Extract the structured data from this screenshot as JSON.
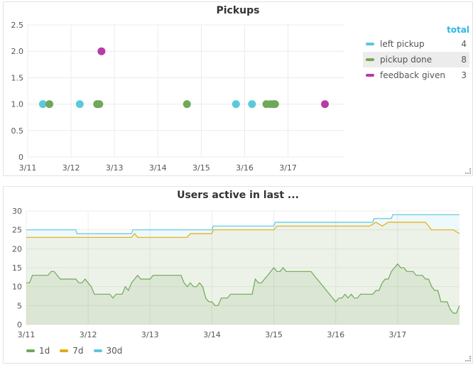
{
  "panels": {
    "pickups": {
      "title": "Pickups",
      "legend": {
        "header": "total",
        "items": [
          {
            "label": "left pickup",
            "total": "4",
            "color": "#5bc8dc"
          },
          {
            "label": "pickup done",
            "total": "8",
            "color": "#6fa85a"
          },
          {
            "label": "feedback given",
            "total": "3",
            "color": "#b83aa8"
          }
        ]
      }
    },
    "users": {
      "title": "Users active in last ...",
      "legend": [
        {
          "label": "1d",
          "color": "#6fa85a"
        },
        {
          "label": "7d",
          "color": "#e5ac0e"
        },
        {
          "label": "30d",
          "color": "#5bc8dc"
        }
      ]
    }
  },
  "chart_data": [
    {
      "type": "scatter",
      "title": "Pickups",
      "x_ticks": [
        "3/11",
        "3/12",
        "3/13",
        "3/14",
        "3/15",
        "3/16",
        "3/17"
      ],
      "y_ticks": [
        "0",
        "0.5",
        "1.0",
        "1.5",
        "2.0",
        "2.5"
      ],
      "xlim": [
        0,
        7.3
      ],
      "ylim": [
        0,
        2.5
      ],
      "grid": true,
      "series": [
        {
          "name": "left pickup",
          "color": "#5bc8dc",
          "x": [
            0.35,
            1.2,
            4.8,
            5.17
          ],
          "y": [
            1,
            1,
            1,
            1
          ]
        },
        {
          "name": "pickup done",
          "color": "#6fa85a",
          "x": [
            0.5,
            1.6,
            1.65,
            3.67,
            5.5,
            5.6,
            5.67,
            5.7
          ],
          "y": [
            1,
            1,
            1,
            1,
            1,
            1,
            1,
            1
          ]
        },
        {
          "name": "feedback given",
          "color": "#b83aa8",
          "x": [
            1.7,
            6.85
          ],
          "y": [
            2,
            1
          ]
        }
      ]
    },
    {
      "type": "area",
      "title": "Users active in last ...",
      "x_ticks": [
        "3/11",
        "3/12",
        "3/13",
        "3/14",
        "3/15",
        "3/16",
        "3/17"
      ],
      "y_ticks": [
        "0",
        "5",
        "10",
        "15",
        "20",
        "25",
        "30"
      ],
      "xlim": [
        0,
        7
      ],
      "ylim": [
        0,
        30
      ],
      "grid": true,
      "series": [
        {
          "name": "30d",
          "color": "#5bc8dc",
          "points": [
            [
              0,
              25
            ],
            [
              0.8,
              25
            ],
            [
              0.82,
              24
            ],
            [
              1.7,
              24
            ],
            [
              1.72,
              25
            ],
            [
              3.0,
              25
            ],
            [
              3.02,
              26
            ],
            [
              4.0,
              26
            ],
            [
              4.02,
              27
            ],
            [
              5.6,
              27
            ],
            [
              5.62,
              28
            ],
            [
              5.9,
              28
            ],
            [
              5.92,
              29
            ],
            [
              7,
              29
            ]
          ]
        },
        {
          "name": "7d",
          "color": "#e5ac0e",
          "points": [
            [
              0,
              23
            ],
            [
              1.7,
              23
            ],
            [
              1.75,
              24
            ],
            [
              1.8,
              23
            ],
            [
              2.6,
              23
            ],
            [
              2.65,
              24
            ],
            [
              3.0,
              24
            ],
            [
              3.02,
              25
            ],
            [
              4.0,
              25
            ],
            [
              4.05,
              26
            ],
            [
              5.55,
              26
            ],
            [
              5.65,
              27
            ],
            [
              5.75,
              26
            ],
            [
              5.85,
              27
            ],
            [
              6.45,
              27
            ],
            [
              6.55,
              25
            ],
            [
              6.9,
              25
            ],
            [
              7,
              24
            ]
          ]
        },
        {
          "name": "1d",
          "color": "#6fa85a",
          "points": [
            [
              0,
              11
            ],
            [
              0.05,
              11
            ],
            [
              0.1,
              13
            ],
            [
              0.35,
              13
            ],
            [
              0.4,
              14
            ],
            [
              0.45,
              14
            ],
            [
              0.5,
              13
            ],
            [
              0.55,
              12
            ],
            [
              0.8,
              12
            ],
            [
              0.85,
              11
            ],
            [
              0.9,
              11
            ],
            [
              0.95,
              12
            ],
            [
              1.0,
              11
            ],
            [
              1.05,
              10
            ],
            [
              1.1,
              8
            ],
            [
              1.35,
              8
            ],
            [
              1.4,
              7
            ],
            [
              1.45,
              8
            ],
            [
              1.55,
              8
            ],
            [
              1.6,
              10
            ],
            [
              1.65,
              9
            ],
            [
              1.7,
              11
            ],
            [
              1.8,
              13
            ],
            [
              1.85,
              12
            ],
            [
              2.0,
              12
            ],
            [
              2.05,
              13
            ],
            [
              2.5,
              13
            ],
            [
              2.55,
              11
            ],
            [
              2.6,
              10
            ],
            [
              2.65,
              11
            ],
            [
              2.7,
              10
            ],
            [
              2.75,
              10
            ],
            [
              2.8,
              11
            ],
            [
              2.85,
              10
            ],
            [
              2.9,
              7
            ],
            [
              2.95,
              6
            ],
            [
              3.0,
              6
            ],
            [
              3.05,
              5
            ],
            [
              3.1,
              5
            ],
            [
              3.15,
              7
            ],
            [
              3.2,
              7
            ],
            [
              3.25,
              7
            ],
            [
              3.3,
              8
            ],
            [
              3.65,
              8
            ],
            [
              3.7,
              12
            ],
            [
              3.75,
              11
            ],
            [
              3.8,
              11
            ],
            [
              3.9,
              13
            ],
            [
              3.95,
              14
            ],
            [
              4.0,
              15
            ],
            [
              4.05,
              14
            ],
            [
              4.1,
              14
            ],
            [
              4.15,
              15
            ],
            [
              4.2,
              14
            ],
            [
              4.6,
              14
            ],
            [
              4.65,
              13
            ],
            [
              4.75,
              11
            ],
            [
              4.85,
              9
            ],
            [
              4.95,
              7
            ],
            [
              5.0,
              6
            ],
            [
              5.05,
              7
            ],
            [
              5.1,
              7
            ],
            [
              5.15,
              8
            ],
            [
              5.2,
              7
            ],
            [
              5.25,
              8
            ],
            [
              5.3,
              7
            ],
            [
              5.35,
              7
            ],
            [
              5.4,
              8
            ],
            [
              5.6,
              8
            ],
            [
              5.65,
              9
            ],
            [
              5.7,
              9
            ],
            [
              5.75,
              11
            ],
            [
              5.8,
              12
            ],
            [
              5.85,
              12
            ],
            [
              5.9,
              14
            ],
            [
              5.95,
              15
            ],
            [
              6.0,
              16
            ],
            [
              6.05,
              15
            ],
            [
              6.1,
              15
            ],
            [
              6.15,
              14
            ],
            [
              6.25,
              14
            ],
            [
              6.3,
              13
            ],
            [
              6.4,
              13
            ],
            [
              6.45,
              12
            ],
            [
              6.5,
              12
            ],
            [
              6.55,
              10
            ],
            [
              6.6,
              9
            ],
            [
              6.65,
              9
            ],
            [
              6.7,
              6
            ],
            [
              6.8,
              6
            ],
            [
              6.85,
              4
            ],
            [
              6.9,
              3
            ],
            [
              6.95,
              3
            ],
            [
              7.0,
              5
            ]
          ]
        }
      ]
    }
  ]
}
